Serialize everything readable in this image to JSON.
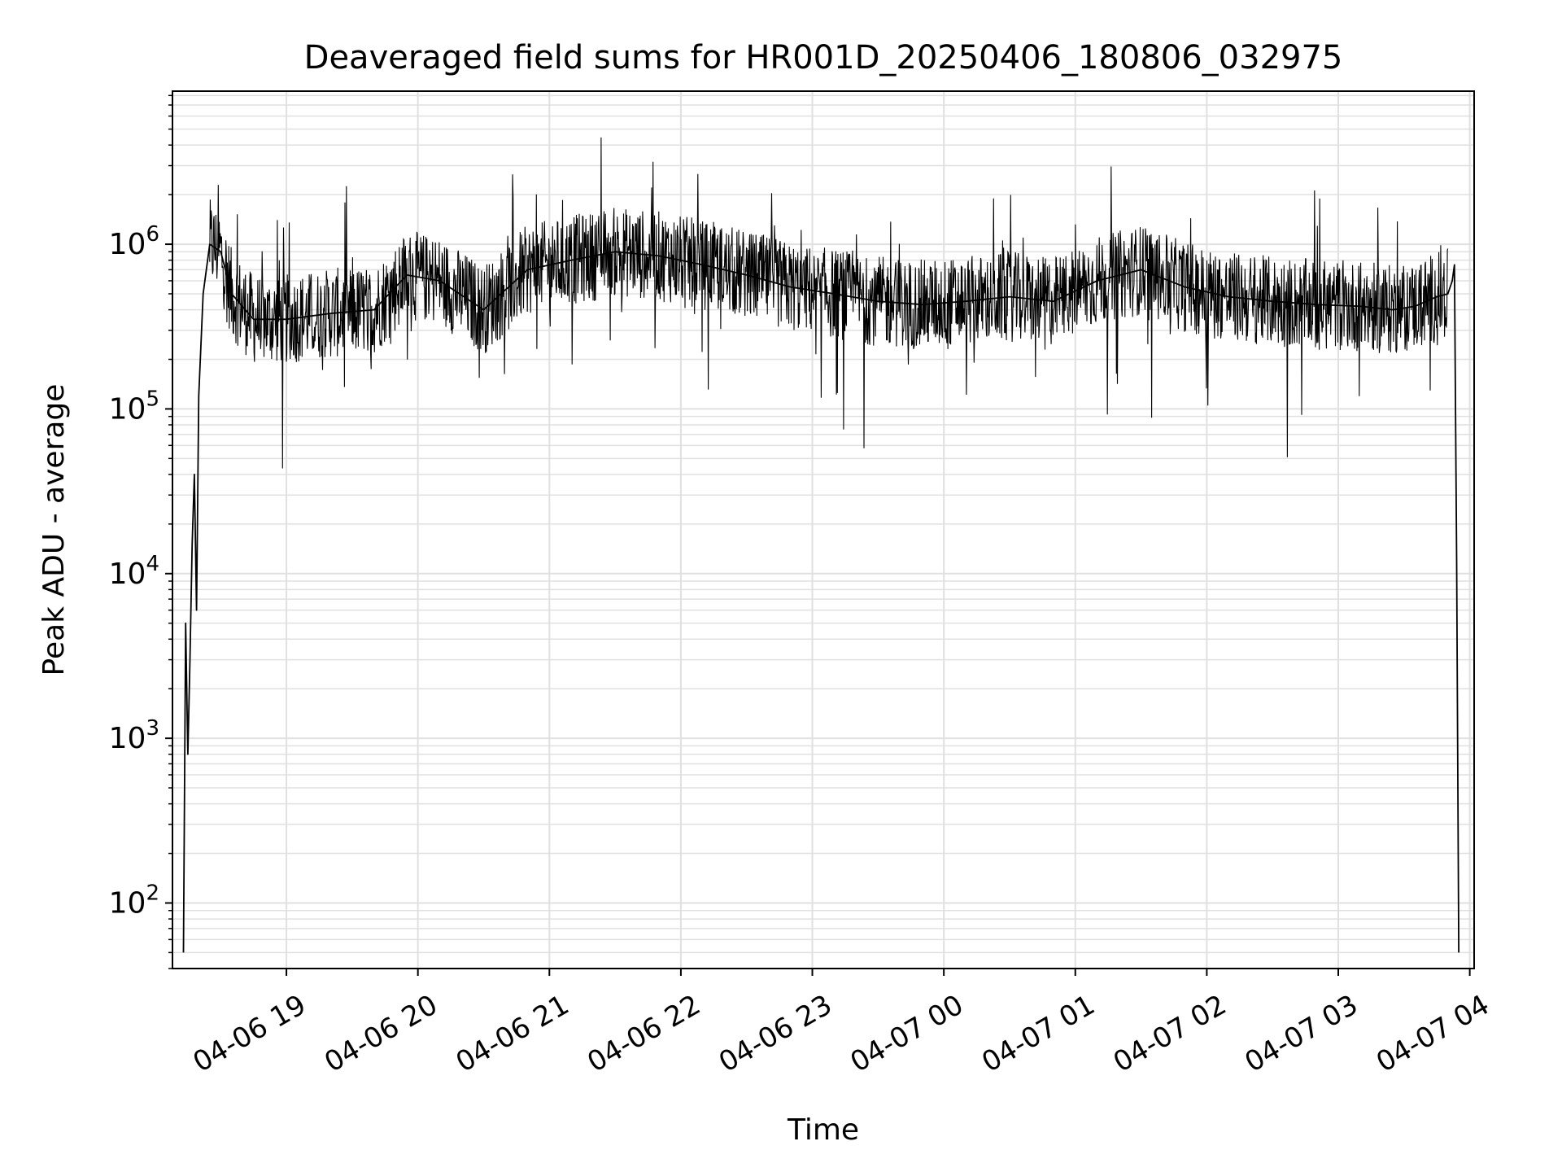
{
  "chart_data": {
    "type": "line",
    "title": "Deaveraged field sums for HR001D_20250406_180806_032975",
    "xlabel": "Time",
    "ylabel": "Peak ADU - average",
    "y_scale": "log",
    "ylim": [
      40,
      8500000
    ],
    "xlim": [
      "2025-04-06 18:08",
      "2025-04-07 04:02"
    ],
    "grid": true,
    "legend": "none",
    "line_color": "#000000",
    "grid_color": "#e0e0e0",
    "x_ticks": [
      {
        "t": "2025-04-06 19:00",
        "label": "04-06 19"
      },
      {
        "t": "2025-04-06 20:00",
        "label": "04-06 20"
      },
      {
        "t": "2025-04-06 21:00",
        "label": "04-06 21"
      },
      {
        "t": "2025-04-06 22:00",
        "label": "04-06 22"
      },
      {
        "t": "2025-04-06 23:00",
        "label": "04-06 23"
      },
      {
        "t": "2025-04-07 00:00",
        "label": "04-07 00"
      },
      {
        "t": "2025-04-07 01:00",
        "label": "04-07 01"
      },
      {
        "t": "2025-04-07 02:00",
        "label": "04-07 02"
      },
      {
        "t": "2025-04-07 03:00",
        "label": "04-07 03"
      },
      {
        "t": "2025-04-07 04:00",
        "label": "04-07 04"
      }
    ],
    "y_ticks": [
      {
        "value": 100,
        "base": "10",
        "exp": "2"
      },
      {
        "value": 1000,
        "base": "10",
        "exp": "3"
      },
      {
        "value": 10000,
        "base": "10",
        "exp": "4"
      },
      {
        "value": 100000,
        "base": "10",
        "exp": "5"
      },
      {
        "value": 1000000,
        "base": "10",
        "exp": "6"
      }
    ],
    "series": [
      {
        "x": [
          "2025-04-06 18:13",
          "2025-04-06 18:14",
          "2025-04-06 18:15",
          "2025-04-06 18:16",
          "2025-04-06 18:17",
          "2025-04-06 18:18",
          "2025-04-06 18:19",
          "2025-04-06 18:20",
          "2025-04-06 18:22",
          "2025-04-06 18:25",
          "2025-04-06 18:30",
          "2025-04-06 18:35",
          "2025-04-06 18:45",
          "2025-04-06 19:00",
          "2025-04-06 19:20",
          "2025-04-06 19:40",
          "2025-04-06 19:55",
          "2025-04-06 20:10",
          "2025-04-06 20:30",
          "2025-04-06 20:50",
          "2025-04-06 21:10",
          "2025-04-06 21:30",
          "2025-04-06 21:50",
          "2025-04-06 22:10",
          "2025-04-06 22:30",
          "2025-04-06 22:50",
          "2025-04-06 23:10",
          "2025-04-06 23:30",
          "2025-04-06 23:50",
          "2025-04-07 00:10",
          "2025-04-07 00:30",
          "2025-04-07 00:50",
          "2025-04-07 01:10",
          "2025-04-07 01:30",
          "2025-04-07 01:50",
          "2025-04-07 02:10",
          "2025-04-07 02:30",
          "2025-04-07 02:50",
          "2025-04-07 03:10",
          "2025-04-07 03:25",
          "2025-04-07 03:35",
          "2025-04-07 03:45",
          "2025-04-07 03:50",
          "2025-04-07 03:52",
          "2025-04-07 03:53",
          "2025-04-07 03:54",
          "2025-04-07 03:55"
        ],
        "values": [
          50,
          5000,
          800,
          3000,
          15000,
          40000,
          6000,
          120000,
          500000,
          1000000,
          900000,
          500000,
          350000,
          350000,
          380000,
          400000,
          650000,
          600000,
          400000,
          700000,
          800000,
          900000,
          850000,
          750000,
          650000,
          550000,
          500000,
          450000,
          430000,
          450000,
          480000,
          450000,
          600000,
          700000,
          550000,
          480000,
          450000,
          430000,
          420000,
          400000,
          420000,
          480000,
          500000,
          600000,
          750000,
          12000,
          50
        ]
      }
    ]
  }
}
